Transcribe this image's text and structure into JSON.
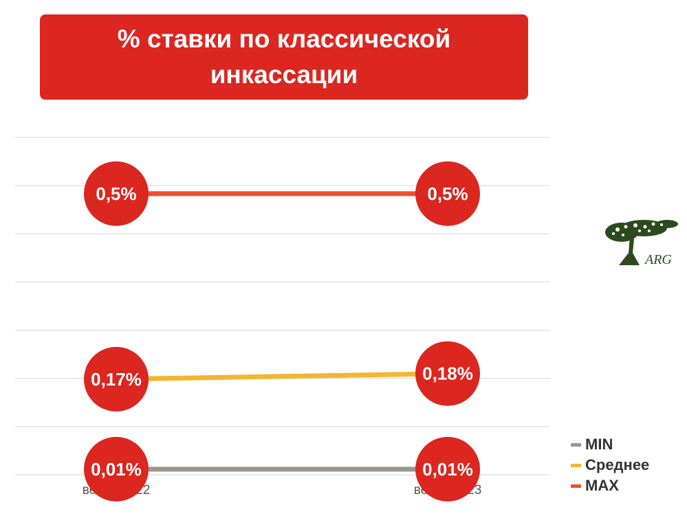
{
  "chart_data": {
    "type": "line",
    "title": "% ставки по классической инкассации",
    "categories": [
      "весна 2022",
      "весна 2023"
    ],
    "ylim": [
      0,
      0.6
    ],
    "grid": true,
    "legend_position": "bottom-right",
    "series": [
      {
        "name": "MIN",
        "values": [
          0.01,
          0.01
        ],
        "labels": [
          "0,01%",
          "0,01%"
        ],
        "color": "#9a9590"
      },
      {
        "name": "Среднее",
        "values": [
          0.17,
          0.18
        ],
        "labels": [
          "0,17%",
          "0,18%"
        ],
        "color": "#f3b630"
      },
      {
        "name": "MAX",
        "values": [
          0.5,
          0.5
        ],
        "labels": [
          "0,5%",
          "0,5%"
        ],
        "color": "#f04e30"
      }
    ]
  },
  "legend_order": [
    "MIN",
    "Среднее",
    "MAX"
  ],
  "marker_color": "#dc2620",
  "logo": {
    "text": "ARG",
    "icon": "tree-icon",
    "color": "#2d4a1e"
  }
}
